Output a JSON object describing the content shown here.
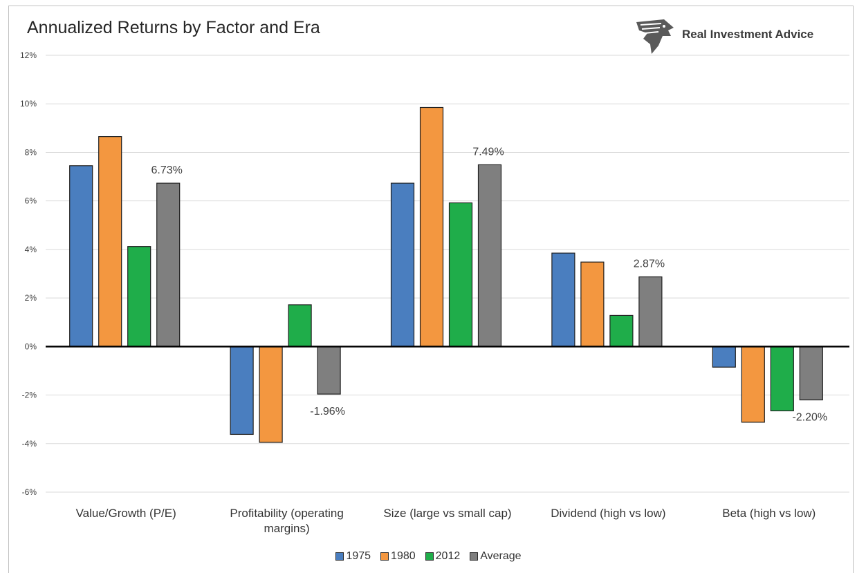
{
  "chart_data": {
    "type": "bar",
    "title": "Annualized Returns by Factor and Era",
    "categories": [
      "Value/Growth (P/E)",
      "Profitability (operating margins)",
      "Size (large vs small cap)",
      "Dividend (high vs low)",
      "Beta (high vs low)"
    ],
    "series": [
      {
        "name": "1975",
        "color": "#4a7ebf",
        "values": [
          7.45,
          -3.62,
          6.73,
          3.85,
          -0.85
        ]
      },
      {
        "name": "1980",
        "color": "#f39740",
        "values": [
          8.65,
          -3.95,
          9.85,
          3.48,
          -3.12
        ]
      },
      {
        "name": "2012",
        "color": "#1fad4a",
        "values": [
          4.12,
          1.72,
          5.92,
          1.28,
          -2.65
        ]
      },
      {
        "name": "Average",
        "color": "#7f7f7f",
        "values": [
          6.73,
          -1.96,
          7.49,
          2.87,
          -2.2
        ]
      }
    ],
    "data_labels": [
      "6.73%",
      "-1.96%",
      "7.49%",
      "2.87%",
      "-2.20%"
    ],
    "yticks": [
      "12%",
      "10%",
      "8%",
      "6%",
      "4%",
      "2%",
      "0%",
      "-2%",
      "-4%",
      "-6%"
    ],
    "ylim": [
      -6,
      12
    ],
    "grid": true,
    "legend_position": "bottom"
  },
  "brand": {
    "name": "Real Investment Advice",
    "icon": "eagle-head-icon"
  }
}
